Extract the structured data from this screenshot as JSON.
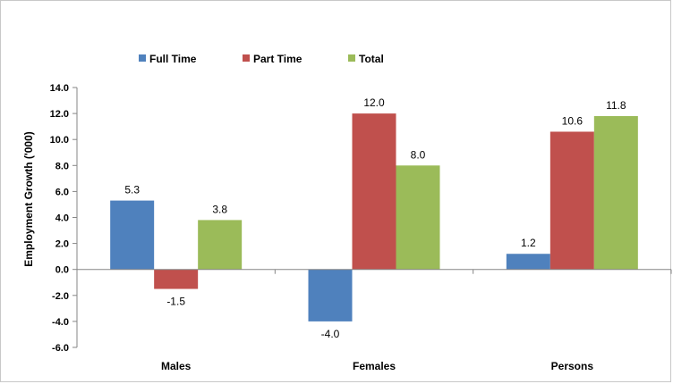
{
  "chart_data": {
    "type": "bar",
    "title": "",
    "xlabel": "",
    "ylabel": "Employment Growth ('000)",
    "categories": [
      "Males",
      "Females",
      "Persons"
    ],
    "series": [
      {
        "name": "Full Time",
        "color": "#4f81bd",
        "values": [
          5.3,
          -4.0,
          1.2
        ]
      },
      {
        "name": "Part Time",
        "color": "#c0504d",
        "values": [
          -1.5,
          12.0,
          10.6
        ]
      },
      {
        "name": "Total",
        "color": "#9bbb59",
        "values": [
          3.8,
          8.0,
          11.8
        ]
      }
    ],
    "ylim": [
      -6,
      14
    ],
    "yticks": [
      "14.0",
      "12.0",
      "10.0",
      "8.0",
      "6.0",
      "4.0",
      "2.0",
      "0.0",
      "-2.0",
      "-4.0",
      "-6.0"
    ],
    "legend_position": "top",
    "grid": false
  }
}
